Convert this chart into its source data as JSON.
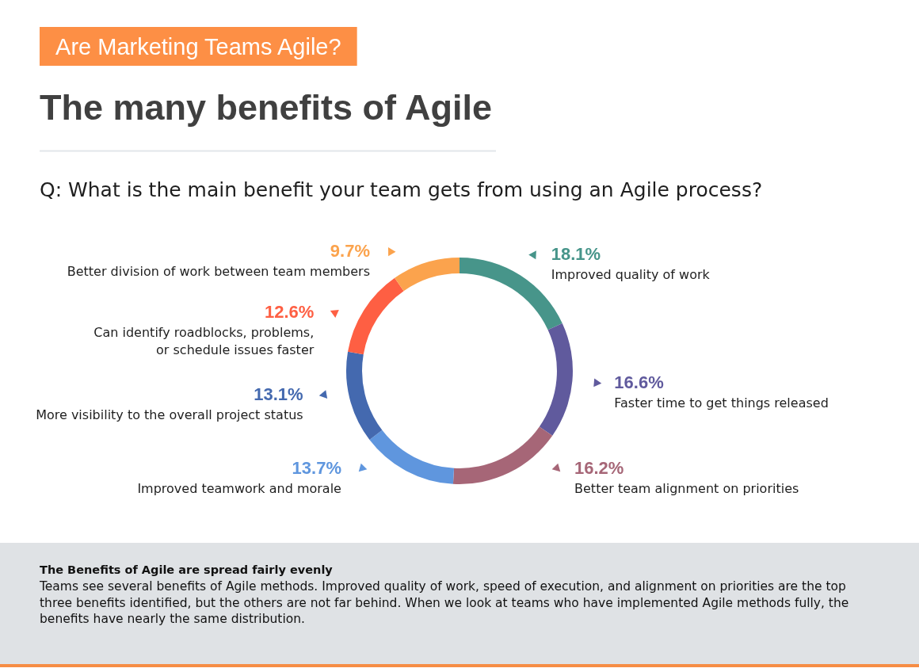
{
  "chart_data": {
    "type": "donut",
    "title": "The many benefits of Agile",
    "subtitle": "Q: What is the main benefit your team gets from using an Agile process?",
    "categories": [
      "Improved quality of work",
      "Faster time to get things released",
      "Better team alignment on priorities",
      "Improved teamwork and morale",
      "More visibility to the overall project status",
      "Can identify roadblocks, problems, or schedule issues faster",
      "Better division of work between team members"
    ],
    "values": [
      18.1,
      16.6,
      16.2,
      13.7,
      13.1,
      12.6,
      9.7
    ],
    "colors": [
      "#47958a",
      "#605a9d",
      "#a66677",
      "#5f96de",
      "#4469af",
      "#fe5f43",
      "#fba34d"
    ],
    "value_labels": [
      "18.1%",
      "16.6%",
      "16.2%",
      "13.7%",
      "13.1%",
      "12.6%",
      "9.7%"
    ],
    "annotations": [
      "Are Marketing Teams Agile?",
      "The Benefits of Agile are spread fairly evenly",
      "Teams see several benefits of Agile methods. Improved quality of work, speed of execution, and alignment on priorities are the top three benefits identified, but the others are not far behind. When we look at teams who have implemented Agile methods fully, the benefits have nearly the same distribution."
    ]
  }
}
